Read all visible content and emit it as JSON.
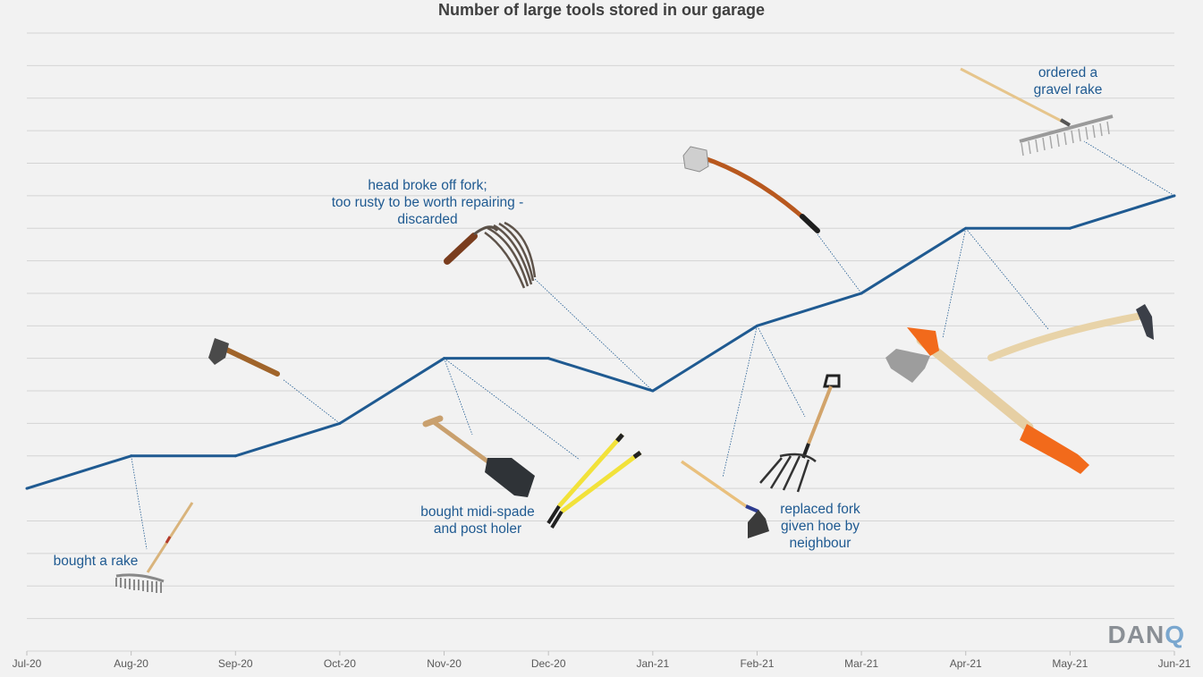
{
  "chart_data": {
    "type": "line",
    "title": "Number of large tools stored in our garage",
    "categories": [
      "Jul-20",
      "Aug-20",
      "Sep-20",
      "Oct-20",
      "Nov-20",
      "Dec-20",
      "Jan-21",
      "Feb-21",
      "Mar-21",
      "Apr-21",
      "May-21",
      "Jun-21"
    ],
    "series": [
      {
        "values": [
          5,
          6,
          6,
          7,
          9,
          9,
          8,
          10,
          11,
          13,
          13,
          14
        ]
      }
    ],
    "ylim": [
      0,
      19
    ],
    "y_ticks_shown": false,
    "grid": true,
    "line_color": "#1f5a91",
    "annotation_color": "#1f5a91",
    "annotations": [
      {
        "text": "bought a rake",
        "category": "Aug-20",
        "icon": "rake-icon"
      },
      {
        "text": "",
        "category": "Oct-20",
        "icon": "hatchet-icon"
      },
      {
        "text": "head broke off fork; too rusty to be worth repairing - discarded",
        "lines": [
          "head broke off fork;",
          "too rusty to be worth repairing -",
          "discarded"
        ],
        "category": "Jan-21",
        "icon": "broken-fork-icon"
      },
      {
        "text": "bought midi-spade and post holer",
        "lines": [
          "bought midi-spade",
          "and post holer"
        ],
        "category": "Nov-20",
        "icon": "spade-icon"
      },
      {
        "text": "",
        "category": "Nov-20",
        "icon": "post-holer-icon"
      },
      {
        "text": "replaced fork given hoe by neighbour",
        "lines": [
          "replaced fork",
          "given hoe by",
          "neighbour"
        ],
        "category": "Feb-21",
        "icon": "fork-icon"
      },
      {
        "text": "",
        "category": "Feb-21",
        "icon": "hoe-icon"
      },
      {
        "text": "",
        "category": "Mar-21",
        "icon": "felling-axe-icon"
      },
      {
        "text": "",
        "category": "Apr-21",
        "icon": "splitting-axe-icon"
      },
      {
        "text": "",
        "category": "Apr-21",
        "icon": "pickaxe-icon"
      },
      {
        "text": "ordered a gravel rake",
        "lines": [
          "ordered a",
          "gravel rake"
        ],
        "category": "Jun-21",
        "icon": "gravel-rake-icon"
      }
    ]
  },
  "logo": {
    "text": "DAN",
    "accent": "Q"
  }
}
